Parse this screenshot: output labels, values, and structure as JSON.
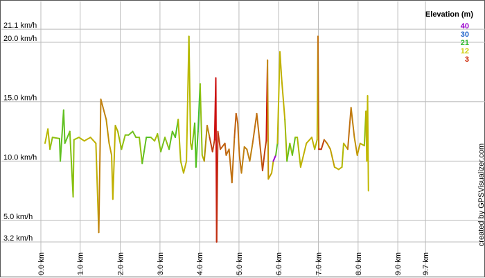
{
  "chart_data": {
    "type": "line",
    "xlabel": "",
    "ylabel": "",
    "xlim": [
      0,
      9.75
    ],
    "ylim": [
      2.5,
      23.5
    ],
    "grid": true,
    "x_ticks": [
      {
        "value": 0.0,
        "label": "0.0 km"
      },
      {
        "value": 0.95,
        "label": "1.0 km"
      },
      {
        "value": 1.92,
        "label": "2.0 km"
      },
      {
        "value": 2.88,
        "label": "3.0 km"
      },
      {
        "value": 3.84,
        "label": "4.0 km"
      },
      {
        "value": 4.79,
        "label": "5.0 km"
      },
      {
        "value": 5.75,
        "label": "6.0 km"
      },
      {
        "value": 6.71,
        "label": "7.0 km"
      },
      {
        "value": 7.67,
        "label": "8.0 km"
      },
      {
        "value": 8.63,
        "label": "9.0 km"
      },
      {
        "value": 9.3,
        "label": "9.7 km"
      }
    ],
    "y_ticks": [
      {
        "value": 3.2,
        "label": "3.2 km/h"
      },
      {
        "value": 5.0,
        "label": "5.0 km/h"
      },
      {
        "value": 10.0,
        "label": "10.0 km/h"
      },
      {
        "value": 15.0,
        "label": "15.0 km/h"
      },
      {
        "value": 20.0,
        "label": "20.0 km/h"
      },
      {
        "value": 21.1,
        "label": "21.1 km/h"
      }
    ],
    "legend": {
      "title": "Elevation (m)",
      "position": "top-right",
      "entries": [
        {
          "label": "40",
          "color": "#9900cc"
        },
        {
          "label": "30",
          "color": "#2266cc"
        },
        {
          "label": "21",
          "color": "#33bb33"
        },
        {
          "label": "12",
          "color": "#cccc00"
        },
        {
          "label": "3",
          "color": "#cc2200"
        }
      ]
    },
    "series": [
      {
        "values_axis": [
          "x_km",
          "speed_kmh",
          "color"
        ],
        "points": [
          [
            0.1,
            11.5,
            "#b8b800"
          ],
          [
            0.17,
            12.7,
            "#b8b800"
          ],
          [
            0.22,
            11.0,
            "#b8b800"
          ],
          [
            0.28,
            12.0,
            "#90c010"
          ],
          [
            0.45,
            11.9,
            "#90c010"
          ],
          [
            0.47,
            10.0,
            "#60c020"
          ],
          [
            0.55,
            14.3,
            "#60c020"
          ],
          [
            0.58,
            11.5,
            "#60c020"
          ],
          [
            0.7,
            12.5,
            "#60c020"
          ],
          [
            0.78,
            7.0,
            "#80c010"
          ],
          [
            0.8,
            11.8,
            "#90c010"
          ],
          [
            0.92,
            12.0,
            "#a0c000"
          ],
          [
            1.05,
            11.7,
            "#b8b800"
          ],
          [
            1.2,
            12.0,
            "#c0b000"
          ],
          [
            1.33,
            11.5,
            "#c0b000"
          ],
          [
            1.4,
            4.0,
            "#c0b000"
          ],
          [
            1.45,
            15.2,
            "#c08010"
          ],
          [
            1.58,
            13.5,
            "#c08010"
          ],
          [
            1.65,
            11.5,
            "#c09000"
          ],
          [
            1.71,
            10.5,
            "#c0a000"
          ],
          [
            1.74,
            6.8,
            "#c0b000"
          ],
          [
            1.8,
            13.0,
            "#c0b000"
          ],
          [
            1.86,
            12.5,
            "#b0b000"
          ],
          [
            1.95,
            11.0,
            "#a0b800"
          ],
          [
            2.04,
            12.2,
            "#90c010"
          ],
          [
            2.12,
            12.2,
            "#80c010"
          ],
          [
            2.22,
            12.5,
            "#70c020"
          ],
          [
            2.3,
            12.0,
            "#70c020"
          ],
          [
            2.38,
            12.0,
            "#80c010"
          ],
          [
            2.45,
            9.8,
            "#90c010"
          ],
          [
            2.55,
            12.0,
            "#60c020"
          ],
          [
            2.66,
            12.0,
            "#50c020"
          ],
          [
            2.75,
            11.7,
            "#90c010"
          ],
          [
            2.82,
            12.3,
            "#b0b800"
          ],
          [
            2.9,
            10.8,
            "#90c010"
          ],
          [
            3.0,
            12.0,
            "#70c020"
          ],
          [
            3.1,
            11.0,
            "#90c010"
          ],
          [
            3.18,
            12.5,
            "#60c020"
          ],
          [
            3.25,
            12.0,
            "#60c020"
          ],
          [
            3.32,
            13.5,
            "#50c020"
          ],
          [
            3.38,
            10.0,
            "#b0b800"
          ],
          [
            3.45,
            9.0,
            "#b0b800"
          ],
          [
            3.52,
            10.0,
            "#c0b000"
          ],
          [
            3.58,
            20.5,
            "#c0b800"
          ],
          [
            3.62,
            11.5,
            "#b0b800"
          ],
          [
            3.65,
            11.0,
            "#b0b800"
          ],
          [
            3.72,
            13.2,
            "#80c010"
          ],
          [
            3.75,
            9.5,
            "#50c020"
          ],
          [
            3.8,
            12.5,
            "#50c020"
          ],
          [
            3.85,
            16.5,
            "#40c030"
          ],
          [
            3.9,
            10.5,
            "#90c010"
          ],
          [
            3.95,
            10.0,
            "#b0b800"
          ],
          [
            4.02,
            13.0,
            "#b09000"
          ],
          [
            4.08,
            12.0,
            "#c08010"
          ],
          [
            4.15,
            10.8,
            "#c04010"
          ],
          [
            4.2,
            11.8,
            "#c04010"
          ],
          [
            4.23,
            17.0,
            "#cc1010"
          ],
          [
            4.25,
            3.2,
            "#cc1010"
          ],
          [
            4.28,
            12.5,
            "#c03010"
          ],
          [
            4.34,
            11.0,
            "#c04010"
          ],
          [
            4.45,
            11.5,
            "#c06010"
          ],
          [
            4.48,
            10.5,
            "#c06010"
          ],
          [
            4.55,
            11.0,
            "#c07010"
          ],
          [
            4.62,
            8.2,
            "#c07010"
          ],
          [
            4.68,
            12.0,
            "#c07010"
          ],
          [
            4.72,
            14.0,
            "#c06010"
          ],
          [
            4.76,
            13.2,
            "#c06010"
          ],
          [
            4.8,
            10.5,
            "#c07010"
          ],
          [
            4.85,
            9.0,
            "#c07010"
          ],
          [
            4.92,
            11.2,
            "#c08010"
          ],
          [
            4.98,
            11.0,
            "#c08010"
          ],
          [
            5.05,
            10.0,
            "#c08010"
          ],
          [
            5.12,
            11.5,
            "#c08010"
          ],
          [
            5.22,
            14.0,
            "#c07010"
          ],
          [
            5.28,
            12.0,
            "#c07010"
          ],
          [
            5.36,
            9.2,
            "#c06010"
          ],
          [
            5.42,
            11.0,
            "#c04010"
          ],
          [
            5.45,
            11.7,
            "#c04010"
          ],
          [
            5.48,
            18.5,
            "#cc1010"
          ],
          [
            5.5,
            8.5,
            "#c09000"
          ],
          [
            5.58,
            9.0,
            "#c0a000"
          ],
          [
            5.62,
            10.0,
            "#c0b000"
          ],
          [
            5.68,
            10.5,
            "#9900cc"
          ],
          [
            5.72,
            11.5,
            "#60c020"
          ],
          [
            5.78,
            19.2,
            "#c0b800"
          ],
          [
            5.82,
            17.0,
            "#c0b000"
          ],
          [
            5.9,
            13.5,
            "#c0b000"
          ],
          [
            5.95,
            10.0,
            "#a0b800"
          ],
          [
            6.02,
            11.5,
            "#60c020"
          ],
          [
            6.08,
            10.5,
            "#90c010"
          ],
          [
            6.15,
            12.0,
            "#60c020"
          ],
          [
            6.2,
            12.0,
            "#90c010"
          ],
          [
            6.28,
            9.5,
            "#b0b800"
          ],
          [
            6.35,
            10.5,
            "#c0b000"
          ],
          [
            6.42,
            11.5,
            "#c0b000"
          ],
          [
            6.55,
            12.0,
            "#c0b000"
          ],
          [
            6.62,
            11.0,
            "#c0b000"
          ],
          [
            6.68,
            11.8,
            "#b0b800"
          ],
          [
            6.7,
            20.5,
            "#c0b800"
          ],
          [
            6.72,
            11.0,
            "#c07010"
          ],
          [
            6.78,
            11.0,
            "#cc2010"
          ],
          [
            6.85,
            11.8,
            "#c04010"
          ],
          [
            6.92,
            11.5,
            "#c07010"
          ],
          [
            7.0,
            11.0,
            "#c09000"
          ],
          [
            7.1,
            9.5,
            "#c0a000"
          ],
          [
            7.2,
            9.3,
            "#c0b000"
          ],
          [
            7.28,
            9.5,
            "#c0b000"
          ],
          [
            7.32,
            11.5,
            "#b0b800"
          ],
          [
            7.42,
            11.0,
            "#c0b000"
          ],
          [
            7.5,
            14.5,
            "#c07010"
          ],
          [
            7.58,
            12.0,
            "#c08010"
          ],
          [
            7.65,
            10.5,
            "#c09000"
          ],
          [
            7.72,
            11.5,
            "#c0a000"
          ],
          [
            7.82,
            11.3,
            "#c0b000"
          ],
          [
            7.86,
            14.2,
            "#90c010"
          ],
          [
            7.88,
            10.0,
            "#c0b000"
          ],
          [
            7.9,
            15.5,
            "#c0b800"
          ],
          [
            7.92,
            7.5,
            "#c0b800"
          ]
        ]
      }
    ]
  },
  "credit": "created by GPSVisualizer.com"
}
